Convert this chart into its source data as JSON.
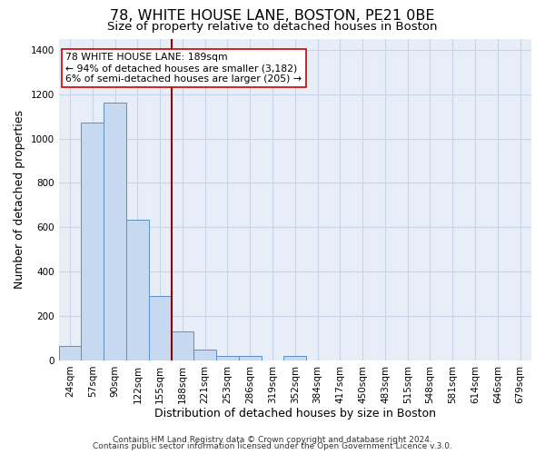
{
  "title": "78, WHITE HOUSE LANE, BOSTON, PE21 0BE",
  "subtitle": "Size of property relative to detached houses in Boston",
  "xlabel": "Distribution of detached houses by size in Boston",
  "ylabel": "Number of detached properties",
  "bin_labels": [
    "24sqm",
    "57sqm",
    "90sqm",
    "122sqm",
    "155sqm",
    "188sqm",
    "221sqm",
    "253sqm",
    "286sqm",
    "319sqm",
    "352sqm",
    "384sqm",
    "417sqm",
    "450sqm",
    "483sqm",
    "515sqm",
    "548sqm",
    "581sqm",
    "614sqm",
    "646sqm",
    "679sqm"
  ],
  "bar_heights": [
    65,
    1070,
    1160,
    635,
    290,
    130,
    50,
    20,
    20,
    0,
    20,
    0,
    0,
    0,
    0,
    0,
    0,
    0,
    0,
    0,
    0
  ],
  "bar_color": "#c6d9f0",
  "bar_edge_color": "#5b8ec4",
  "vline_color": "#8b0000",
  "annotation_text": "78 WHITE HOUSE LANE: 189sqm\n← 94% of detached houses are smaller (3,182)\n6% of semi-detached houses are larger (205) →",
  "annotation_box_color": "#ffffff",
  "annotation_box_edge": "#cc0000",
  "ylim": [
    0,
    1450
  ],
  "yticks": [
    0,
    200,
    400,
    600,
    800,
    1000,
    1200,
    1400
  ],
  "bg_color": "#e8eef8",
  "grid_color": "#c8d4e8",
  "footer1": "Contains HM Land Registry data © Crown copyright and database right 2024.",
  "footer2": "Contains public sector information licensed under the Open Government Licence v.3.0.",
  "title_fontsize": 11.5,
  "subtitle_fontsize": 9.5,
  "axis_label_fontsize": 9,
  "tick_fontsize": 7.5,
  "footer_fontsize": 6.5
}
